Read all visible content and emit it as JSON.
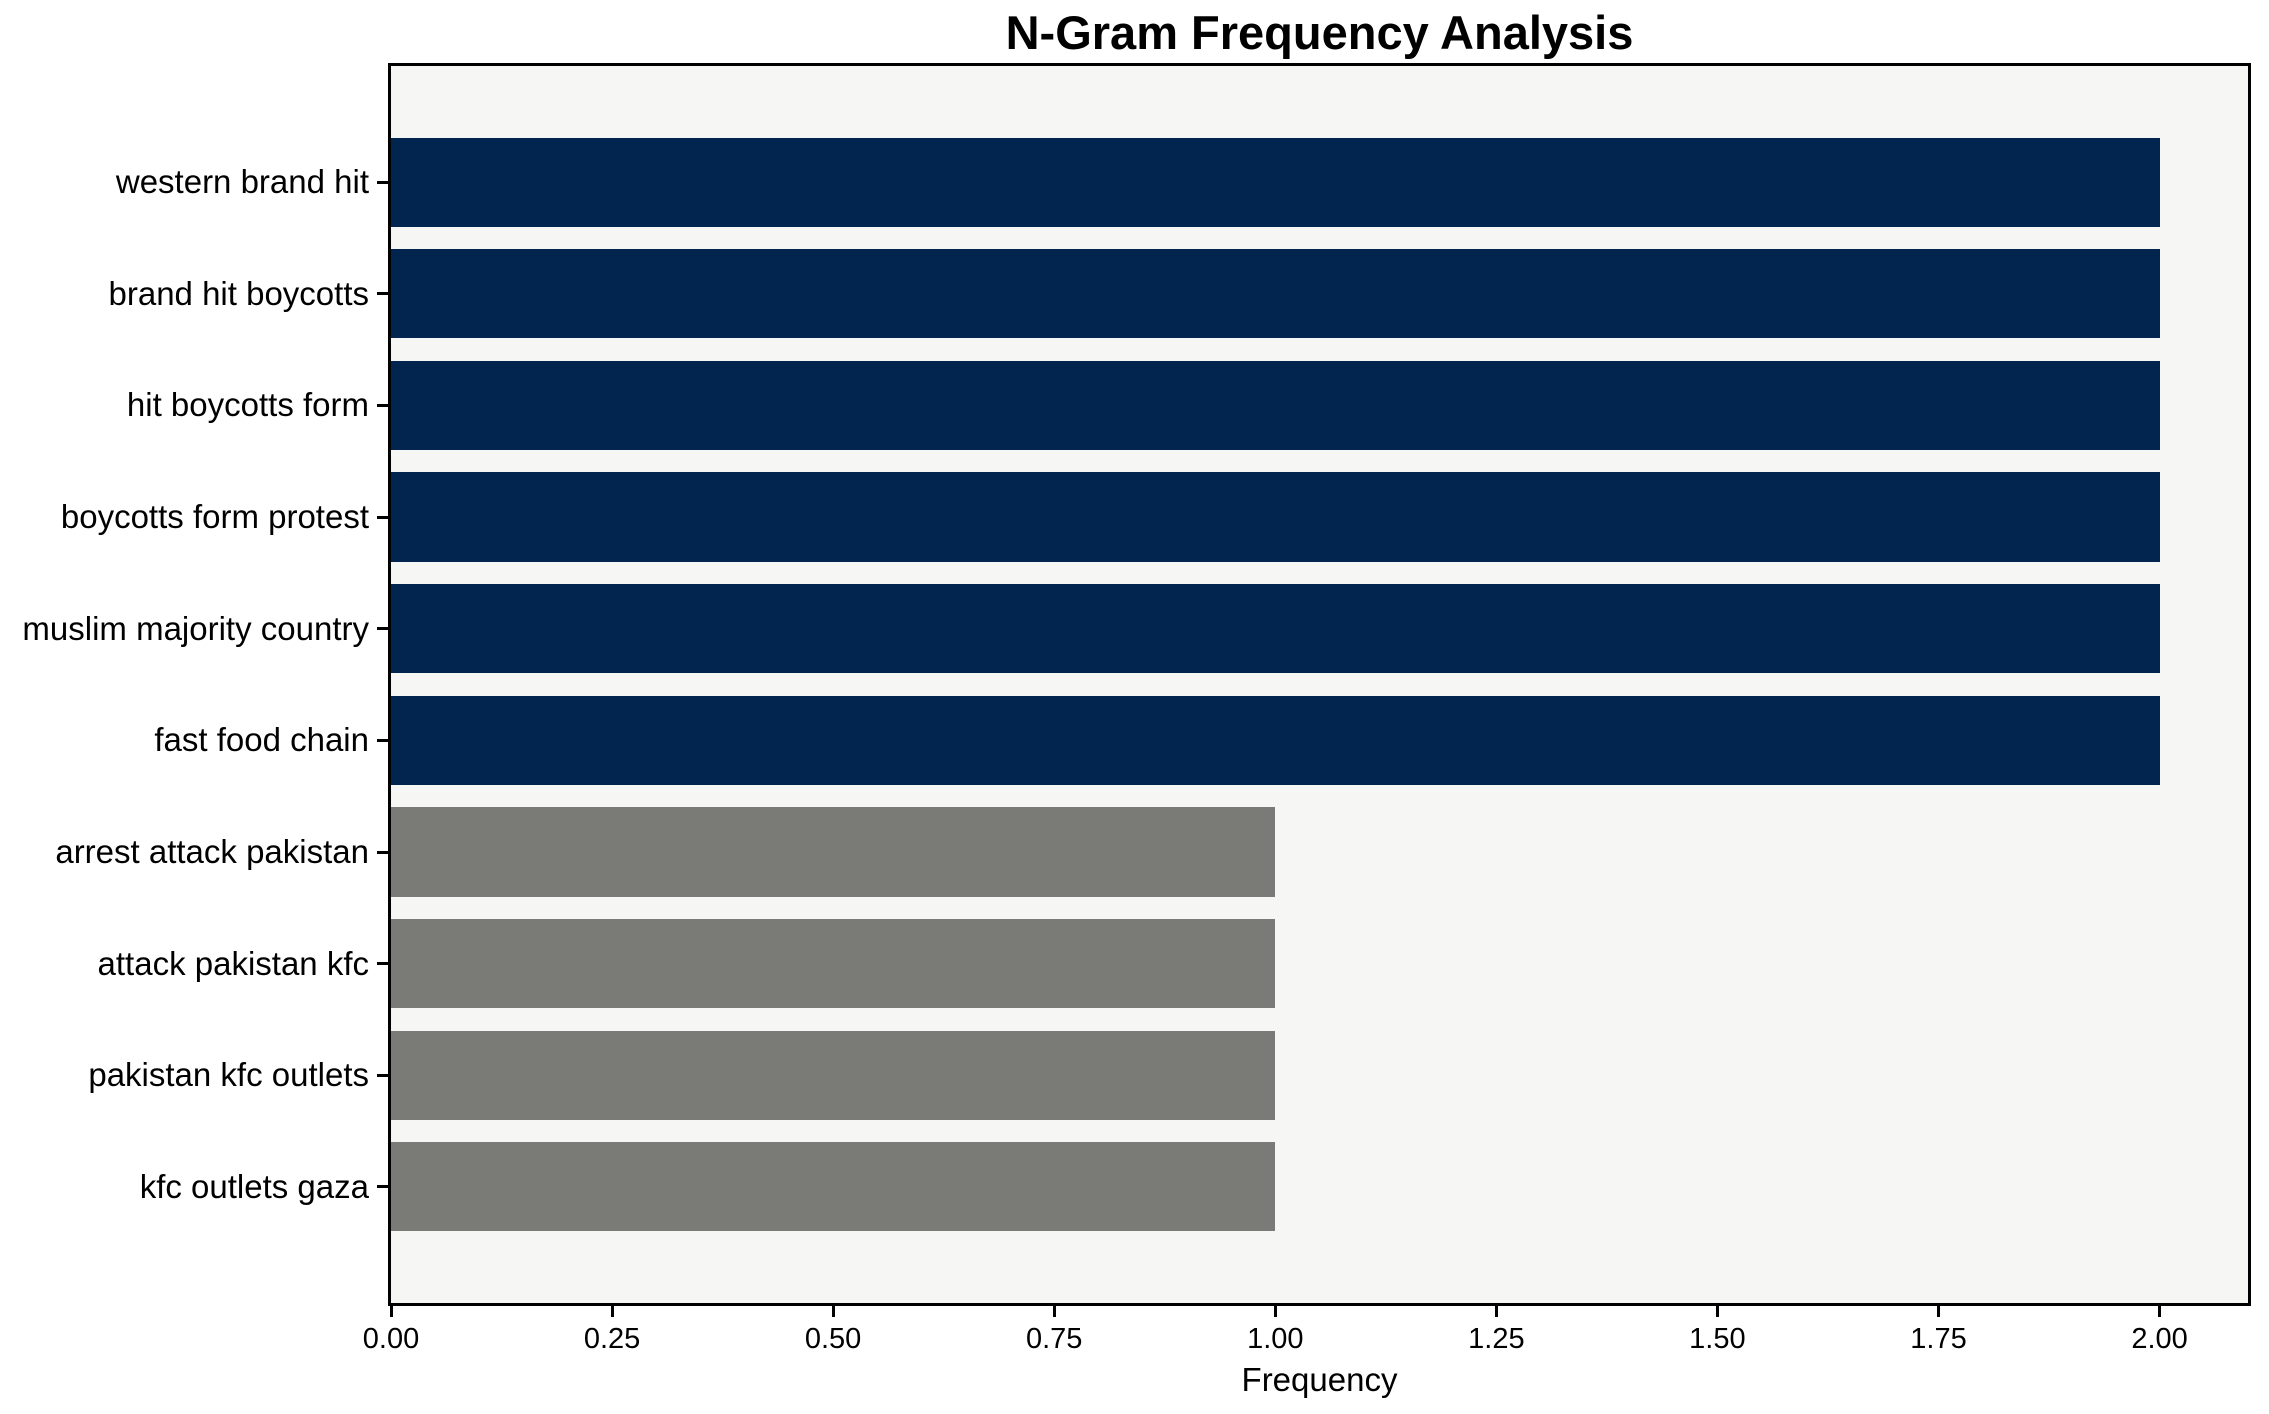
{
  "chart_data": {
    "type": "bar",
    "orientation": "horizontal",
    "title": "N-Gram Frequency Analysis",
    "xlabel": "Frequency",
    "ylabel": "",
    "categories": [
      "western brand hit",
      "brand hit boycotts",
      "hit boycotts form",
      "boycotts form protest",
      "muslim majority country",
      "fast food chain",
      "arrest attack pakistan",
      "attack pakistan kfc",
      "pakistan kfc outlets",
      "kfc outlets gaza"
    ],
    "values": [
      2,
      2,
      2,
      2,
      2,
      2,
      1,
      1,
      1,
      1
    ],
    "bar_colors": [
      "#022550",
      "#022550",
      "#022550",
      "#022550",
      "#022550",
      "#022550",
      "#7A7A77",
      "#7A7A77",
      "#7A7A77",
      "#7A7A77"
    ],
    "xlim": [
      0,
      2.1
    ],
    "xticks": [
      0,
      0.25,
      0.5,
      0.75,
      1.0,
      1.25,
      1.5,
      1.75,
      2.0
    ],
    "xtick_labels": [
      "0.00",
      "0.25",
      "0.50",
      "0.75",
      "1.00",
      "1.25",
      "1.50",
      "1.75",
      "2.00"
    ],
    "bar_height_fraction": 0.8,
    "grid": false,
    "legend": "none",
    "colors": {
      "navy_bar": "#022550",
      "gray_bar": "#7A7A77",
      "plot_background": "#F6F6F5",
      "figure_background": "#FFFFFF",
      "axis_line": "#000000",
      "text": "#000000"
    }
  }
}
